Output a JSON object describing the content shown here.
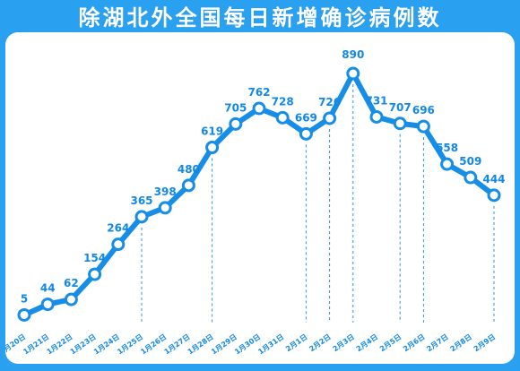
{
  "title": "除湖北外全国每日新增确诊病例数",
  "colors": {
    "background": "#2aa0f0",
    "panel": "#ffffff",
    "line": "#168ee8",
    "label": "#1188e8"
  },
  "chart_data": {
    "type": "line",
    "title": "除湖北外全国每日新增确诊病例数",
    "x": [
      "1月20日",
      "1月21日",
      "1月22日",
      "1月23日",
      "1月24日",
      "1月25日",
      "1月26日",
      "1月27日",
      "1月28日",
      "1月29日",
      "1月30日",
      "1月31日",
      "2月1日",
      "2月2日",
      "2月3日",
      "2月4日",
      "2月5日",
      "2月6日",
      "2月7日",
      "2月8日",
      "2月9日"
    ],
    "series": [
      {
        "values": [
          5,
          44,
          62,
          154,
          264,
          365,
          398,
          480,
          619,
          705,
          762,
          728,
          669,
          726,
          890,
          731,
          707,
          696,
          558,
          509,
          444
        ]
      }
    ],
    "data_labels": [
      "5",
      "44",
      "62",
      "154",
      "264",
      "365",
      "398",
      "480",
      "619",
      "705",
      "762",
      "728",
      "669",
      "726",
      "890",
      "731",
      "707",
      "696",
      "558",
      "509",
      "444"
    ],
    "guide_categories": [
      "1月25日",
      "1月28日",
      "2月1日",
      "2月2日",
      "2月3日",
      "2月5日",
      "2月6日",
      "2月9日"
    ],
    "ylim": [
      0,
      900
    ],
    "grid": false,
    "legend": "none",
    "xlabel": "",
    "ylabel": ""
  }
}
